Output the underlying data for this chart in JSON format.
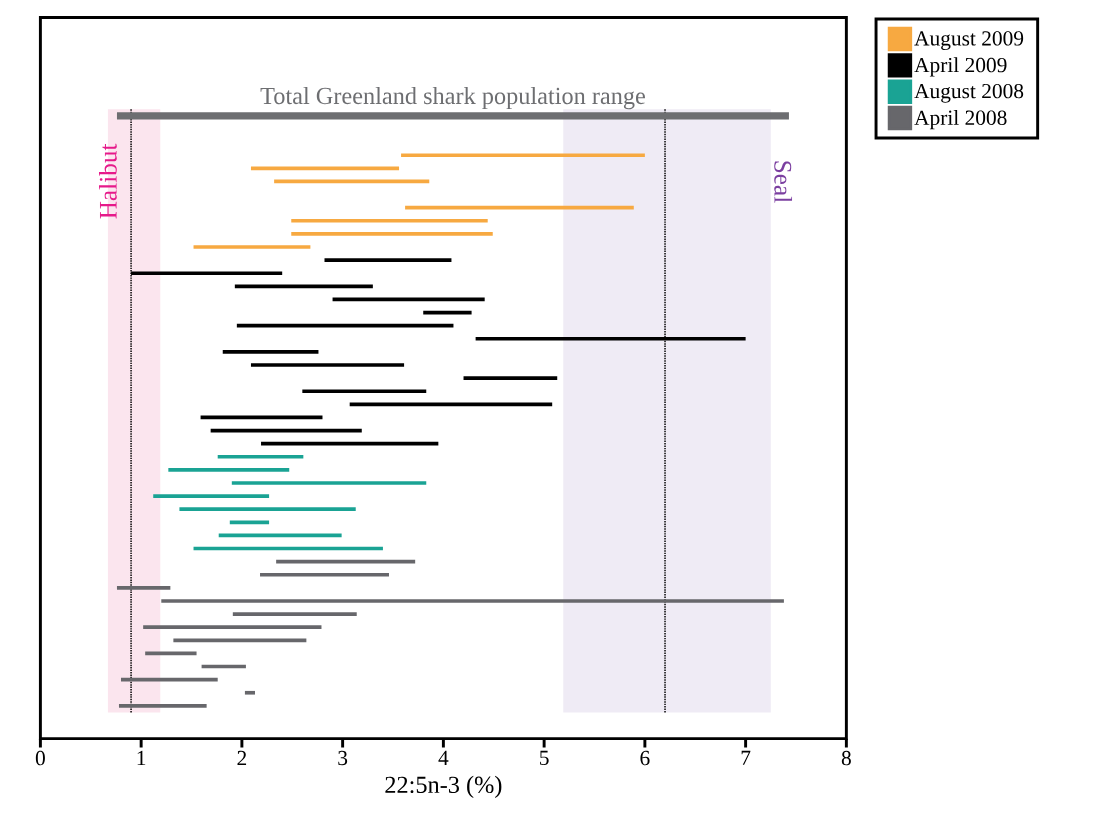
{
  "chart_data": {
    "type": "bar",
    "orientation": "horizontal",
    "xlabel": "22:5n-3 (%)",
    "categories": [
      null,
      null,
      null,
      null,
      null,
      null,
      null,
      null,
      null,
      null,
      null,
      null,
      null,
      null,
      null,
      null,
      null,
      null,
      null,
      null,
      null,
      null,
      null,
      null,
      null,
      null,
      null,
      null,
      null,
      null,
      null,
      null,
      null,
      null,
      null,
      null,
      null,
      null,
      null,
      null,
      null,
      null,
      null,
      null,
      null,
      null
    ],
    "xlim": [
      0,
      8
    ],
    "xticks": [
      0,
      1,
      2,
      3,
      4,
      5,
      6,
      7,
      8
    ],
    "legend": "top right",
    "series": [
      {
        "name": "Total Greenland shark population range",
        "color": "#6d6e71",
        "values": [
          6.67,
          null,
          null,
          null,
          null,
          null,
          null,
          null,
          null,
          null,
          null,
          null,
          null,
          null,
          null,
          null,
          null,
          null,
          null,
          null,
          null,
          null,
          null,
          null,
          null,
          null,
          null,
          null,
          null,
          null,
          null,
          null,
          null,
          null,
          null,
          null,
          null,
          null,
          null,
          null,
          null,
          null,
          null,
          null,
          null,
          null
        ],
        "base": [
          0.76,
          null,
          null,
          null,
          null,
          null,
          null,
          null,
          null,
          null,
          null,
          null,
          null,
          null,
          null,
          null,
          null,
          null,
          null,
          null,
          null,
          null,
          null,
          null,
          null,
          null,
          null,
          null,
          null,
          null,
          null,
          null,
          null,
          null,
          null,
          null,
          null,
          null,
          null,
          null,
          null,
          null,
          null,
          null,
          null,
          null
        ]
      },
      {
        "name": "August 2009",
        "color": "#f7a941",
        "values": [
          null,
          null,
          null,
          2.42,
          1.47,
          1.54,
          null,
          2.27,
          1.95,
          2.0,
          1.16,
          null,
          null,
          null,
          null,
          null,
          null,
          null,
          null,
          null,
          null,
          null,
          null,
          null,
          null,
          null,
          null,
          null,
          null,
          null,
          null,
          null,
          null,
          null,
          null,
          null,
          null,
          null,
          null,
          null,
          null,
          null,
          null,
          null,
          null,
          null
        ],
        "base": [
          null,
          null,
          null,
          3.58,
          2.09,
          2.32,
          null,
          3.62,
          2.49,
          2.49,
          1.52,
          null,
          null,
          null,
          null,
          null,
          null,
          null,
          null,
          null,
          null,
          null,
          null,
          null,
          null,
          null,
          null,
          null,
          null,
          null,
          null,
          null,
          null,
          null,
          null,
          null,
          null,
          null,
          null,
          null,
          null,
          null,
          null,
          null,
          null,
          null
        ]
      },
      {
        "name": "April 2009",
        "color": "#000000",
        "values": [
          null,
          null,
          null,
          null,
          null,
          null,
          null,
          null,
          null,
          null,
          null,
          1.26,
          1.5,
          1.37,
          1.51,
          0.48,
          2.15,
          2.68,
          0.95,
          1.52,
          0.93,
          1.23,
          2.01,
          1.21,
          1.5,
          1.76,
          null,
          null,
          null,
          null,
          null,
          null,
          null,
          null,
          null,
          null,
          null,
          null,
          null,
          null,
          null,
          null,
          null,
          null,
          null,
          null
        ],
        "base": [
          null,
          null,
          null,
          null,
          null,
          null,
          null,
          null,
          null,
          null,
          null,
          2.82,
          0.9,
          1.93,
          2.9,
          3.8,
          1.95,
          4.32,
          1.81,
          2.09,
          4.2,
          2.6,
          3.07,
          1.59,
          1.69,
          2.19,
          null,
          null,
          null,
          null,
          null,
          null,
          null,
          null,
          null,
          null,
          null,
          null,
          null,
          null,
          null,
          null,
          null,
          null,
          null,
          null
        ]
      },
      {
        "name": "August 2008",
        "color": "#1aa394",
        "values": [
          null,
          null,
          null,
          null,
          null,
          null,
          null,
          null,
          null,
          null,
          null,
          null,
          null,
          null,
          null,
          null,
          null,
          null,
          null,
          null,
          null,
          null,
          null,
          null,
          null,
          null,
          0.85,
          1.2,
          1.93,
          1.15,
          1.75,
          0.39,
          1.22,
          1.88,
          null,
          null,
          null,
          null,
          null,
          null,
          null,
          null,
          null,
          null,
          null,
          null
        ],
        "base": [
          null,
          null,
          null,
          null,
          null,
          null,
          null,
          null,
          null,
          null,
          null,
          null,
          null,
          null,
          null,
          null,
          null,
          null,
          null,
          null,
          null,
          null,
          null,
          null,
          null,
          null,
          1.76,
          1.27,
          1.9,
          1.12,
          1.38,
          1.88,
          1.77,
          1.52,
          null,
          null,
          null,
          null,
          null,
          null,
          null,
          null,
          null,
          null,
          null,
          null
        ]
      },
      {
        "name": "April 2008",
        "color": "#67676b",
        "values": [
          null,
          null,
          null,
          null,
          null,
          null,
          null,
          null,
          null,
          null,
          null,
          null,
          null,
          null,
          null,
          null,
          null,
          null,
          null,
          null,
          null,
          null,
          null,
          null,
          null,
          null,
          null,
          null,
          null,
          null,
          null,
          null,
          null,
          null,
          1.38,
          1.28,
          0.53,
          6.18,
          1.23,
          1.77,
          1.32,
          0.51,
          0.44,
          0.96,
          0.1,
          0.87
        ],
        "base": [
          null,
          null,
          null,
          null,
          null,
          null,
          null,
          null,
          null,
          null,
          null,
          null,
          null,
          null,
          null,
          null,
          null,
          null,
          null,
          null,
          null,
          null,
          null,
          null,
          null,
          null,
          null,
          null,
          null,
          null,
          null,
          null,
          null,
          null,
          2.34,
          2.18,
          0.76,
          1.2,
          1.91,
          1.02,
          1.32,
          1.04,
          1.6,
          0.8,
          2.03,
          0.78
        ]
      }
    ],
    "ref_lines": [
      {
        "axis": "x",
        "value": 0.9,
        "color": "#000000",
        "line_style": "dotted"
      },
      {
        "axis": "x",
        "value": 6.2,
        "color": "#000000",
        "line_style": "dotted"
      }
    ],
    "bands": [
      {
        "axis": "x",
        "from": 0.67,
        "to": 1.19,
        "label": "Halibut",
        "color": "#fbe5ee"
      },
      {
        "axis": "x",
        "from": 5.19,
        "to": 7.25,
        "label": "Seal",
        "color": "#efebf5"
      }
    ]
  }
}
